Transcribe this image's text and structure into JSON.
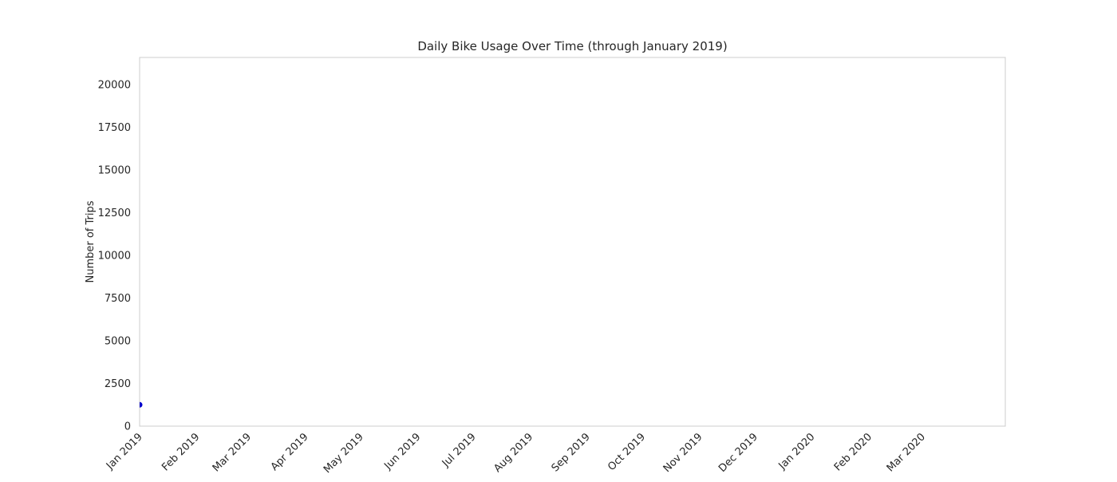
{
  "chart_data": {
    "type": "line",
    "title": "Daily Bike Usage Over Time (through January 2019)",
    "xlabel": "",
    "ylabel": "Number of Trips",
    "x_axis_type": "date",
    "xlim": [
      "2019-01-01",
      "2020-04-15"
    ],
    "ylim": [
      0,
      21600
    ],
    "x_ticks": [
      {
        "date": "2019-01-01",
        "label": "Jan 2019"
      },
      {
        "date": "2019-02-01",
        "label": "Feb 2019"
      },
      {
        "date": "2019-03-01",
        "label": "Mar 2019"
      },
      {
        "date": "2019-04-01",
        "label": "Apr 2019"
      },
      {
        "date": "2019-05-01",
        "label": "May 2019"
      },
      {
        "date": "2019-06-01",
        "label": "Jun 2019"
      },
      {
        "date": "2019-07-01",
        "label": "Jul 2019"
      },
      {
        "date": "2019-08-01",
        "label": "Aug 2019"
      },
      {
        "date": "2019-09-01",
        "label": "Sep 2019"
      },
      {
        "date": "2019-10-01",
        "label": "Oct 2019"
      },
      {
        "date": "2019-11-01",
        "label": "Nov 2019"
      },
      {
        "date": "2019-12-01",
        "label": "Dec 2019"
      },
      {
        "date": "2020-01-01",
        "label": "Jan 2020"
      },
      {
        "date": "2020-02-01",
        "label": "Feb 2020"
      },
      {
        "date": "2020-03-01",
        "label": "Mar 2020"
      }
    ],
    "y_ticks": [
      0,
      2500,
      5000,
      7500,
      10000,
      12500,
      15000,
      17500,
      20000
    ],
    "grid": true,
    "series": [
      {
        "color": "#0000cc",
        "marker": "circle",
        "points": [
          {
            "x": "2019-01-01",
            "y": 1250
          }
        ]
      }
    ]
  }
}
